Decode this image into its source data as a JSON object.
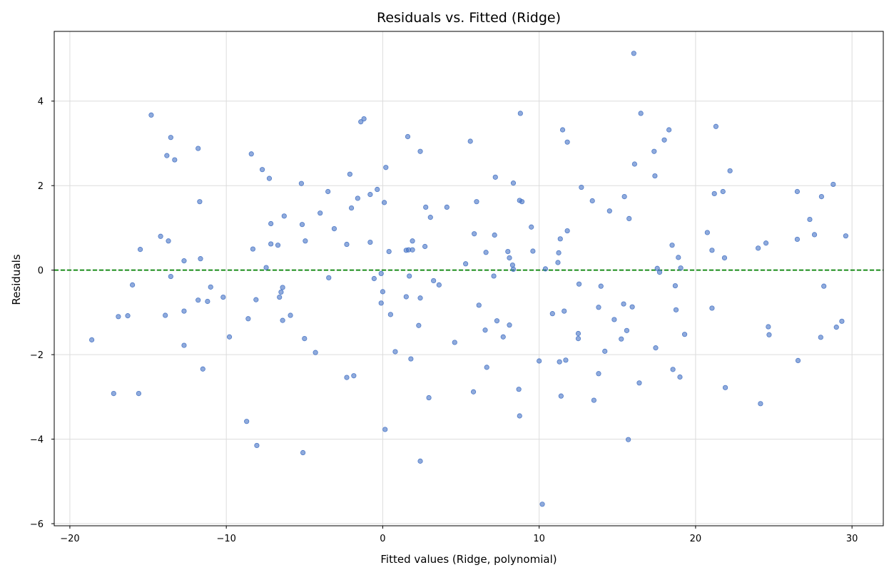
{
  "chart_data": {
    "type": "scatter",
    "title": "Residuals vs. Fitted (Ridge)",
    "xlabel": "Fitted values (Ridge, polynomial)",
    "ylabel": "Residuals",
    "xlim": [
      -21,
      32
    ],
    "ylim": [
      -6.05,
      5.65
    ],
    "xticks": [
      -20,
      -10,
      0,
      10,
      20,
      30
    ],
    "yticks": [
      -6,
      -4,
      -2,
      0,
      2,
      4
    ],
    "xtick_labels": [
      "−20",
      "−10",
      "0",
      "10",
      "20",
      "30"
    ],
    "ytick_labels": [
      "−6",
      "−4",
      "−2",
      "0",
      "2",
      "4"
    ],
    "grid": true,
    "reference_line": {
      "y": 0,
      "style": "dashed",
      "color": "#008000"
    },
    "point_color": "#4472c4",
    "points": [
      [
        -18.6,
        -1.65
      ],
      [
        -17.2,
        -2.92
      ],
      [
        -16.9,
        -1.1
      ],
      [
        -16.3,
        -1.08
      ],
      [
        -16.0,
        -0.35
      ],
      [
        -15.6,
        -2.92
      ],
      [
        -15.5,
        0.49
      ],
      [
        -14.8,
        3.67
      ],
      [
        -14.2,
        0.8
      ],
      [
        -13.9,
        -1.07
      ],
      [
        -13.8,
        2.71
      ],
      [
        -13.7,
        0.69
      ],
      [
        -13.55,
        3.14
      ],
      [
        -13.55,
        -0.15
      ],
      [
        -13.3,
        2.61
      ],
      [
        -12.7,
        -1.78
      ],
      [
        -12.7,
        -0.97
      ],
      [
        -12.7,
        0.22
      ],
      [
        -11.8,
        2.88
      ],
      [
        -11.8,
        -0.71
      ],
      [
        -11.7,
        1.62
      ],
      [
        -11.65,
        0.27
      ],
      [
        -11.5,
        -2.34
      ],
      [
        -11.2,
        -0.74
      ],
      [
        -11.0,
        -0.4
      ],
      [
        -10.2,
        -0.64
      ],
      [
        -9.8,
        -1.58
      ],
      [
        -8.7,
        -3.58
      ],
      [
        -8.6,
        -1.15
      ],
      [
        -8.4,
        2.75
      ],
      [
        -8.3,
        0.5
      ],
      [
        -8.1,
        -0.7
      ],
      [
        -8.05,
        -4.15
      ],
      [
        -7.7,
        2.38
      ],
      [
        -7.45,
        0.06
      ],
      [
        -7.25,
        2.17
      ],
      [
        -7.15,
        1.1
      ],
      [
        -7.15,
        0.62
      ],
      [
        -6.7,
        0.59
      ],
      [
        -6.6,
        -0.64
      ],
      [
        -6.5,
        -0.52
      ],
      [
        -6.4,
        -0.41
      ],
      [
        -6.4,
        -1.19
      ],
      [
        -6.3,
        1.28
      ],
      [
        -5.9,
        -1.07
      ],
      [
        -5.2,
        2.05
      ],
      [
        -5.15,
        1.08
      ],
      [
        -5.1,
        -4.32
      ],
      [
        -5.0,
        -1.62
      ],
      [
        -4.95,
        0.69
      ],
      [
        -4.3,
        -1.95
      ],
      [
        -4.0,
        1.35
      ],
      [
        -3.5,
        1.86
      ],
      [
        -3.45,
        -0.18
      ],
      [
        -3.1,
        0.98
      ],
      [
        -2.3,
        0.61
      ],
      [
        -2.3,
        -2.54
      ],
      [
        -2.1,
        2.27
      ],
      [
        -2.0,
        1.47
      ],
      [
        -1.85,
        -2.5
      ],
      [
        -1.6,
        1.7
      ],
      [
        -1.4,
        3.51
      ],
      [
        -1.2,
        3.58
      ],
      [
        -0.8,
        0.66
      ],
      [
        -0.8,
        1.79
      ],
      [
        -0.55,
        -0.2
      ],
      [
        -0.35,
        1.91
      ],
      [
        -0.1,
        -0.08
      ],
      [
        -0.1,
        -0.78
      ],
      [
        0.0,
        -0.51
      ],
      [
        0.1,
        1.6
      ],
      [
        0.15,
        -3.77
      ],
      [
        0.2,
        2.43
      ],
      [
        0.4,
        0.44
      ],
      [
        0.5,
        -1.05
      ],
      [
        0.8,
        -1.93
      ],
      [
        1.5,
        0.47
      ],
      [
        1.5,
        -0.63
      ],
      [
        1.6,
        3.16
      ],
      [
        1.65,
        0.48
      ],
      [
        1.7,
        -0.14
      ],
      [
        1.8,
        -2.1
      ],
      [
        1.9,
        0.48
      ],
      [
        1.9,
        0.69
      ],
      [
        2.3,
        -1.31
      ],
      [
        2.4,
        -0.66
      ],
      [
        2.4,
        2.81
      ],
      [
        2.4,
        -4.52
      ],
      [
        2.7,
        0.56
      ],
      [
        2.75,
        1.49
      ],
      [
        2.95,
        -3.02
      ],
      [
        3.05,
        1.25
      ],
      [
        3.25,
        -0.25
      ],
      [
        3.6,
        -0.35
      ],
      [
        4.1,
        1.49
      ],
      [
        4.6,
        -1.71
      ],
      [
        5.3,
        0.15
      ],
      [
        5.6,
        3.05
      ],
      [
        5.8,
        -2.88
      ],
      [
        5.85,
        0.86
      ],
      [
        6.0,
        1.62
      ],
      [
        6.15,
        -0.83
      ],
      [
        6.55,
        -1.42
      ],
      [
        6.6,
        0.42
      ],
      [
        6.65,
        -2.3
      ],
      [
        7.1,
        -0.14
      ],
      [
        7.15,
        0.83
      ],
      [
        7.2,
        2.2
      ],
      [
        7.3,
        -1.2
      ],
      [
        7.7,
        -1.58
      ],
      [
        8.0,
        0.44
      ],
      [
        8.1,
        0.29
      ],
      [
        8.1,
        -1.3
      ],
      [
        8.3,
        0.12
      ],
      [
        8.35,
        0.02
      ],
      [
        8.35,
        2.06
      ],
      [
        8.7,
        -2.82
      ],
      [
        8.75,
        1.65
      ],
      [
        8.75,
        -3.45
      ],
      [
        8.8,
        3.71
      ],
      [
        8.9,
        1.62
      ],
      [
        9.5,
        1.02
      ],
      [
        9.6,
        0.45
      ],
      [
        10.0,
        -2.15
      ],
      [
        10.2,
        -5.54
      ],
      [
        10.4,
        0.03
      ],
      [
        10.85,
        -1.03
      ],
      [
        11.2,
        0.18
      ],
      [
        11.25,
        0.41
      ],
      [
        11.3,
        -2.17
      ],
      [
        11.35,
        0.74
      ],
      [
        11.4,
        -2.98
      ],
      [
        11.5,
        3.32
      ],
      [
        11.6,
        -0.97
      ],
      [
        11.7,
        -2.13
      ],
      [
        11.8,
        0.93
      ],
      [
        11.8,
        3.03
      ],
      [
        12.5,
        -1.5
      ],
      [
        12.5,
        -1.62
      ],
      [
        12.55,
        -0.33
      ],
      [
        12.7,
        1.96
      ],
      [
        13.4,
        1.64
      ],
      [
        13.5,
        -3.08
      ],
      [
        13.8,
        -0.88
      ],
      [
        13.8,
        -2.45
      ],
      [
        13.95,
        -0.38
      ],
      [
        14.2,
        -1.92
      ],
      [
        14.5,
        1.4
      ],
      [
        14.8,
        -1.17
      ],
      [
        15.25,
        -1.63
      ],
      [
        15.4,
        -0.8
      ],
      [
        15.45,
        1.74
      ],
      [
        15.6,
        -1.43
      ],
      [
        15.7,
        -4.01
      ],
      [
        15.75,
        1.22
      ],
      [
        15.95,
        -0.87
      ],
      [
        16.05,
        5.13
      ],
      [
        16.1,
        2.51
      ],
      [
        16.4,
        -2.67
      ],
      [
        16.5,
        3.71
      ],
      [
        17.35,
        2.81
      ],
      [
        17.4,
        2.23
      ],
      [
        17.45,
        -1.84
      ],
      [
        17.55,
        0.04
      ],
      [
        17.7,
        -0.05
      ],
      [
        18.0,
        3.08
      ],
      [
        18.3,
        3.32
      ],
      [
        18.5,
        0.59
      ],
      [
        18.55,
        -2.35
      ],
      [
        18.7,
        -0.37
      ],
      [
        18.75,
        -0.94
      ],
      [
        18.9,
        0.3
      ],
      [
        19.0,
        -2.53
      ],
      [
        19.05,
        0.05
      ],
      [
        19.3,
        -1.52
      ],
      [
        20.75,
        0.89
      ],
      [
        21.05,
        -0.9
      ],
      [
        21.05,
        0.47
      ],
      [
        21.2,
        1.81
      ],
      [
        21.3,
        3.4
      ],
      [
        21.75,
        1.86
      ],
      [
        21.85,
        0.29
      ],
      [
        21.9,
        -2.78
      ],
      [
        22.2,
        2.35
      ],
      [
        24.0,
        0.52
      ],
      [
        24.15,
        -3.16
      ],
      [
        24.5,
        0.64
      ],
      [
        24.65,
        -1.34
      ],
      [
        24.7,
        -1.53
      ],
      [
        26.5,
        1.86
      ],
      [
        26.5,
        0.73
      ],
      [
        26.55,
        -2.14
      ],
      [
        27.3,
        1.2
      ],
      [
        27.6,
        0.84
      ],
      [
        28.0,
        -1.59
      ],
      [
        28.05,
        1.74
      ],
      [
        28.2,
        -0.38
      ],
      [
        28.8,
        2.03
      ],
      [
        29.0,
        -1.35
      ],
      [
        29.35,
        -1.21
      ],
      [
        29.6,
        0.81
      ]
    ]
  }
}
